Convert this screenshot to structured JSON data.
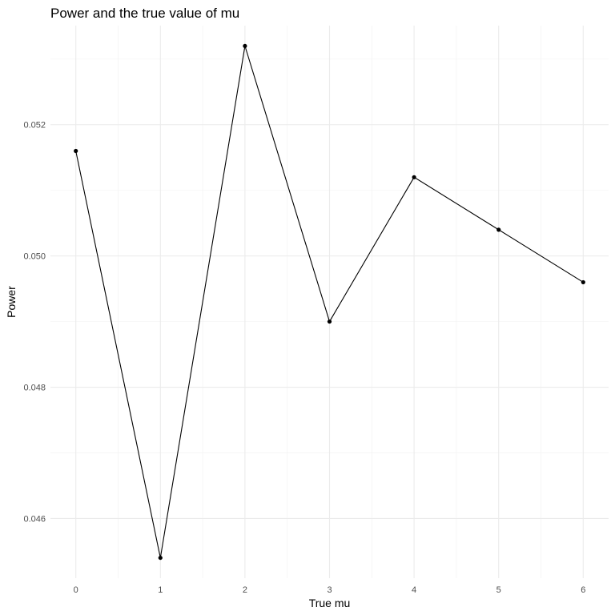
{
  "chart_data": {
    "type": "line",
    "title": "Power and the true value of mu",
    "xlabel": "True mu",
    "ylabel": "Power",
    "x": [
      0,
      1,
      2,
      3,
      4,
      5,
      6
    ],
    "series": [
      {
        "values": [
          0.0516,
          0.0454,
          0.0532,
          0.049,
          0.0512,
          0.0504,
          0.0496
        ]
      }
    ],
    "xlim": [
      -0.3,
      6.3
    ],
    "ylim": [
      0.04509,
      0.05351
    ],
    "x_ticks": [
      0,
      1,
      2,
      3,
      4,
      5,
      6
    ],
    "x_tick_labels": [
      "0",
      "1",
      "2",
      "3",
      "4",
      "5",
      "6"
    ],
    "y_ticks": [
      0.046,
      0.048,
      0.05,
      0.052
    ],
    "y_tick_labels": [
      "0.046",
      "0.048",
      "0.050",
      "0.052"
    ],
    "grid": true,
    "legend": "none",
    "line_color": "#000000",
    "point_color": "#000000",
    "grid_color": "#ebebeb"
  }
}
